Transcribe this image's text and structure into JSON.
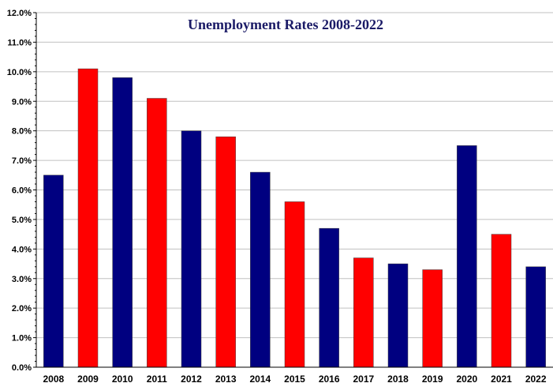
{
  "chart_data": {
    "type": "bar",
    "title": "Unemployment  Rates  2008-2022",
    "xlabel": "",
    "ylabel": "",
    "categories": [
      "2008",
      "2009",
      "2010",
      "2011",
      "2012",
      "2013",
      "2014",
      "2015",
      "2016",
      "2017",
      "2018",
      "2019",
      "2020",
      "2021",
      "2022"
    ],
    "values": [
      6.5,
      10.1,
      9.8,
      9.1,
      8.0,
      7.8,
      6.6,
      5.6,
      4.7,
      3.7,
      3.5,
      3.3,
      7.5,
      4.5,
      3.4
    ],
    "bar_colors": [
      "#000080",
      "#ff0000",
      "#000080",
      "#ff0000",
      "#000080",
      "#ff0000",
      "#000080",
      "#ff0000",
      "#000080",
      "#ff0000",
      "#000080",
      "#ff0000",
      "#000080",
      "#ff0000",
      "#000080"
    ],
    "ylim": [
      0,
      12
    ],
    "y_ticks": [
      "0.0%",
      "1.0%",
      "2.0%",
      "3.0%",
      "4.0%",
      "5.0%",
      "6.0%",
      "7.0%",
      "8.0%",
      "9.0%",
      "10.0%",
      "11.0%",
      "12.0%"
    ],
    "grid": true,
    "colors": {
      "navy": "#000080",
      "red": "#ff0000",
      "grid": "#c0c0c0",
      "title": "#1a1a66"
    }
  }
}
